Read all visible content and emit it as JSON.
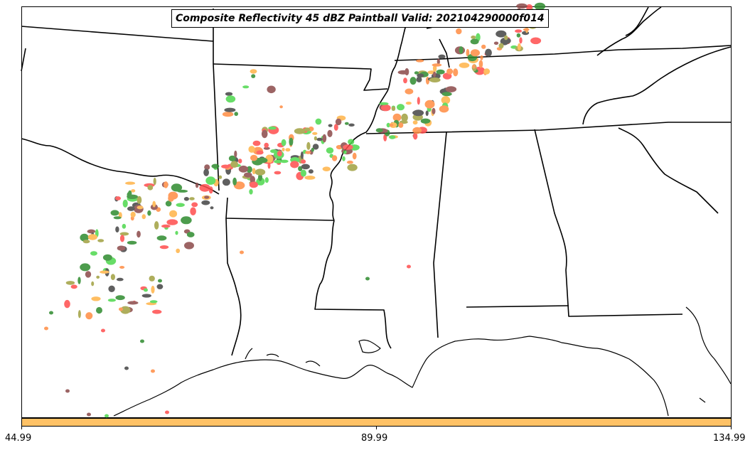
{
  "title": "Composite Reflectivity 45 dBZ Paintball Valid: 202104290000f014",
  "colorbar": {
    "color": "#ffc266",
    "tick_labels": [
      "44.99",
      "89.99",
      "134.99"
    ]
  },
  "paintball_colors": [
    "#ff4d4d",
    "#ff8c42",
    "#ffb347",
    "#4dd84d",
    "#2e8b2e",
    "#a0a040",
    "#8b4a4a",
    "#444444"
  ]
}
